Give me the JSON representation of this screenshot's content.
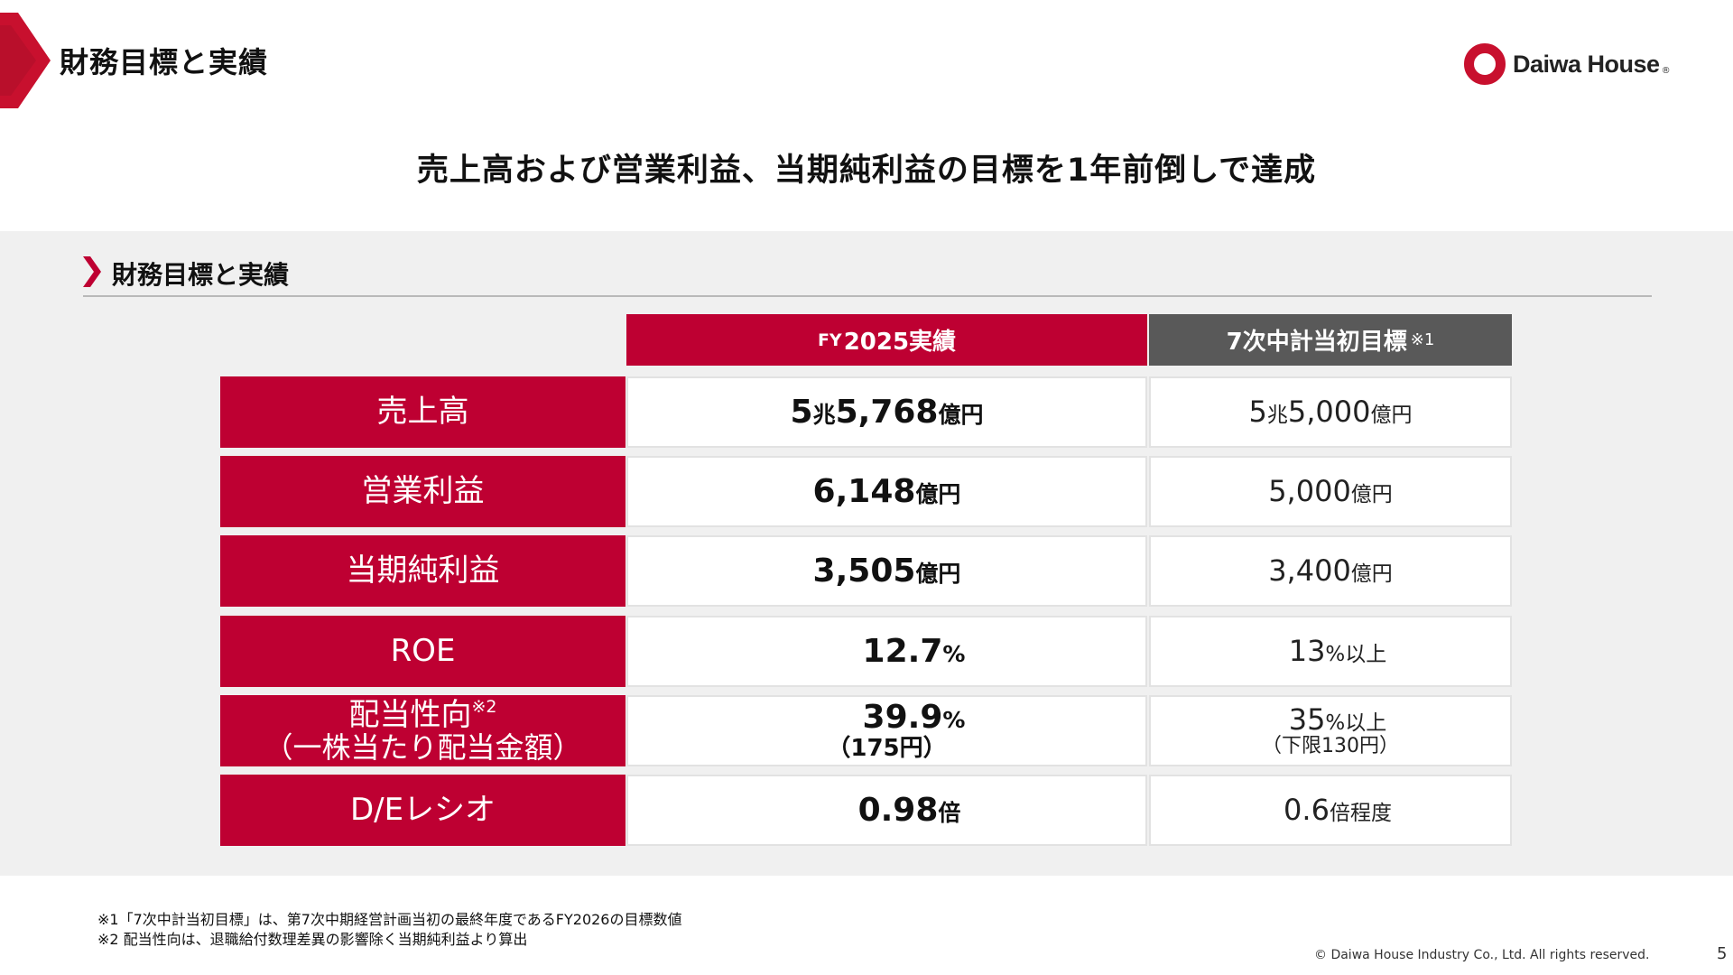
{
  "header": {
    "title": "財務目標と実績",
    "logo_text": "Daiwa House",
    "logo_reg": "®"
  },
  "headline": "売上高および営業利益、当期純利益の目標を1年前倒しで達成",
  "section": {
    "title": "財務目標と実績"
  },
  "table": {
    "col_actual": {
      "prefix": "FY",
      "label": "2025実績"
    },
    "col_target": {
      "label": "7次中計当初目標",
      "note": "※1"
    },
    "rows": [
      {
        "label": "売上高",
        "actual": {
          "a": "5",
          "b": "兆",
          "c": "5,768",
          "d": "億円"
        },
        "target": {
          "a": "5",
          "b": "兆",
          "c": "5,000",
          "d": "億円"
        }
      },
      {
        "label": "営業利益",
        "actual": {
          "value": "6,148",
          "unit": "億円"
        },
        "target": {
          "value": "5,000",
          "unit": "億円"
        }
      },
      {
        "label": "当期純利益",
        "actual": {
          "value": "3,505",
          "unit": "億円"
        },
        "target": {
          "value": "3,400",
          "unit": "億円"
        }
      },
      {
        "label": "ROE",
        "actual": {
          "value": "12.7",
          "unit": "%"
        },
        "target": {
          "value": "13",
          "unit": "%以上"
        }
      },
      {
        "label": "配当性向",
        "label_note": "※2",
        "label_sub": "（一株当たり配当金額）",
        "actual": {
          "value": "39.9",
          "unit": "%",
          "sub": "（175円）"
        },
        "target": {
          "value": "35",
          "unit": "%以上",
          "sub": "（下限130円）"
        }
      },
      {
        "label": "D/Eレシオ",
        "actual": {
          "value": "0.98",
          "unit": "倍"
        },
        "target": {
          "value": "0.6",
          "unit": "倍程度"
        }
      }
    ]
  },
  "footnotes": [
    "※1「7次中計当初目標」は、第7次中期経営計画当初の最終年度であるFY2026の目標数値",
    "※2 配当性向は、退職給付数理差異の影響除く当期純利益より算出"
  ],
  "footer": {
    "copyright": "© Daiwa House Industry Co., Ltd. All rights reserved.",
    "page": "5"
  },
  "colors": {
    "accent": "#be0032",
    "header_gray": "#595959",
    "panel_bg": "#f0f0f0"
  }
}
